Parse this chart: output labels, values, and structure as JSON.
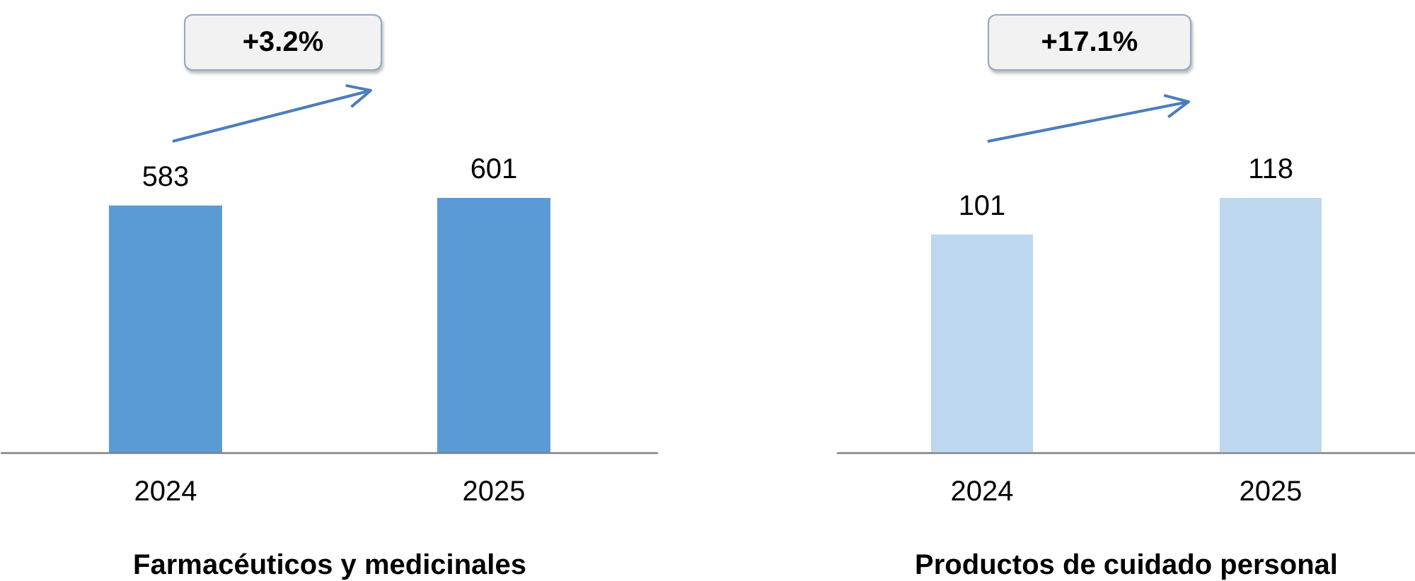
{
  "chart_data": [
    {
      "type": "bar",
      "xlabel": "Farmacéuticos y medicinales",
      "categories": [
        "2024",
        "2025"
      ],
      "values": [
        583,
        601
      ],
      "color": "#5b9bd5",
      "data_labels": true,
      "annotations": [
        "+3.2%"
      ]
    },
    {
      "type": "bar",
      "xlabel": "Productos de cuidado personal",
      "categories": [
        "2024",
        "2025"
      ],
      "values": [
        101,
        118
      ],
      "color": "#bdd7ee",
      "data_labels": true,
      "annotations": [
        "+17.1%"
      ]
    }
  ]
}
